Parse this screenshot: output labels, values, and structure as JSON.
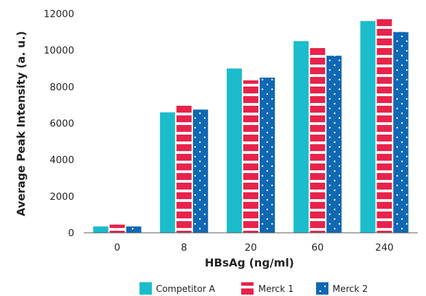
{
  "colors": {
    "competitor_a": "#1bbccc",
    "merck_1": "#e8234a",
    "merck_2": "#0f68b3",
    "axis": "#555555"
  },
  "chart_data": {
    "type": "bar",
    "title": "",
    "xlabel": "HBsAg (ng/ml)",
    "ylabel": "Average Peak Intensity (a. u.)",
    "ylim": [
      0,
      12000
    ],
    "yticks": [
      0,
      2000,
      4000,
      6000,
      8000,
      10000,
      12000
    ],
    "categories": [
      "0",
      "8",
      "20",
      "60",
      "240"
    ],
    "grid": false,
    "legend_position": "bottom",
    "series": [
      {
        "name": "Competitor A",
        "pattern": "solid",
        "color_key": "competitor_a",
        "values": [
          350,
          6600,
          9000,
          10500,
          11600
        ]
      },
      {
        "name": "Merck 1",
        "pattern": "stripes",
        "color_key": "merck_1",
        "values": [
          450,
          7000,
          8350,
          10200,
          11700
        ]
      },
      {
        "name": "Merck 2",
        "pattern": "dots",
        "color_key": "merck_2",
        "values": [
          350,
          6750,
          8500,
          9700,
          11000
        ]
      }
    ]
  }
}
